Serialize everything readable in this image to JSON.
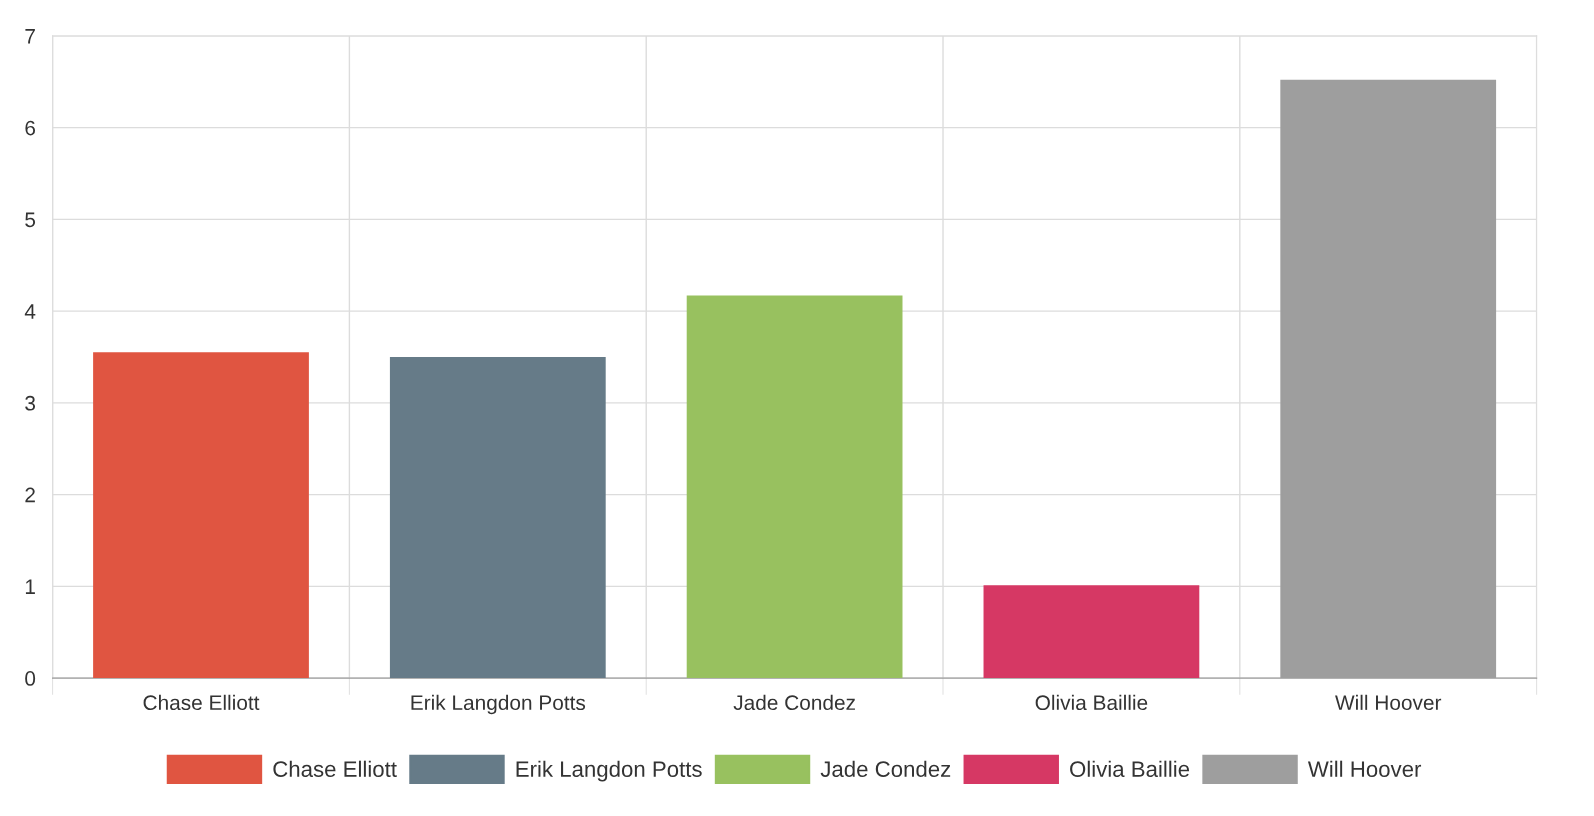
{
  "chart_data": {
    "type": "bar",
    "categories": [
      "Chase Elliott",
      "Erik Langdon Potts",
      "Jade Condez",
      "Olivia Baillie",
      "Will Hoover"
    ],
    "series": [
      {
        "name": "Chase Elliott",
        "color": "#e05541",
        "values": [
          3.54,
          null,
          null,
          null,
          null
        ]
      },
      {
        "name": "Erik Langdon Potts",
        "color": "#667b88",
        "values": [
          null,
          3.49,
          null,
          null,
          null
        ]
      },
      {
        "name": "Jade Condez",
        "color": "#98c15f",
        "values": [
          null,
          null,
          4.16,
          null,
          null
        ]
      },
      {
        "name": "Olivia Baillie",
        "color": "#d63864",
        "values": [
          null,
          null,
          null,
          1.0,
          null
        ]
      },
      {
        "name": "Will Hoover",
        "color": "#9e9e9e",
        "values": [
          null,
          null,
          null,
          null,
          6.51
        ]
      }
    ],
    "ylim": [
      0,
      7
    ],
    "yticks": [
      0,
      1,
      2,
      3,
      4,
      5,
      6,
      7
    ],
    "grid": true,
    "legend": "bottom"
  }
}
